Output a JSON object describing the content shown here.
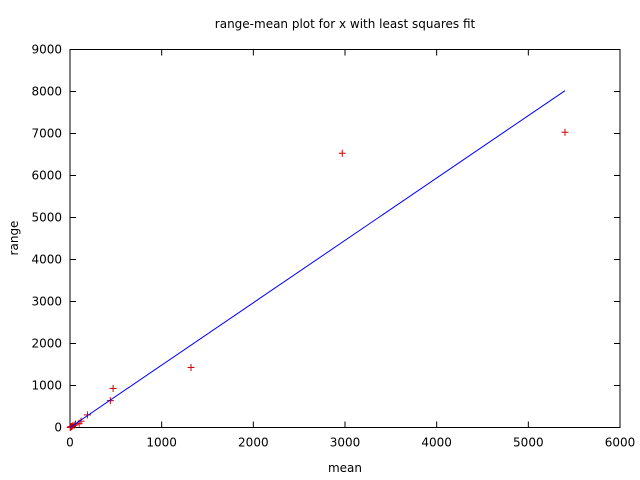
{
  "chart_data": {
    "type": "scatter",
    "title": "range-mean plot for x with least squares fit",
    "xlabel": "mean",
    "ylabel": "range",
    "xlim": [
      0,
      6000
    ],
    "ylim": [
      0,
      9000
    ],
    "xticks": [
      "0",
      "1000",
      "2000",
      "3000",
      "4000",
      "5000",
      "6000"
    ],
    "yticks": [
      "0",
      "1000",
      "2000",
      "3000",
      "4000",
      "5000",
      "6000",
      "7000",
      "8000",
      "9000"
    ],
    "grid": false,
    "series": [
      {
        "marker": "+",
        "color": "#cc0000",
        "points": [
          [
            2,
            3
          ],
          [
            5,
            8
          ],
          [
            10,
            15
          ],
          [
            18,
            25
          ],
          [
            30,
            40
          ],
          [
            45,
            55
          ],
          [
            60,
            80
          ],
          [
            100,
            100
          ],
          [
            120,
            150
          ],
          [
            190,
            300
          ],
          [
            440,
            640
          ],
          [
            470,
            930
          ],
          [
            1320,
            1430
          ],
          [
            2970,
            6530
          ],
          [
            5400,
            7030
          ]
        ]
      },
      {
        "style": "line",
        "color": "#0000ff",
        "points": [
          [
            0,
            0
          ],
          [
            5400,
            8020
          ]
        ]
      }
    ]
  }
}
